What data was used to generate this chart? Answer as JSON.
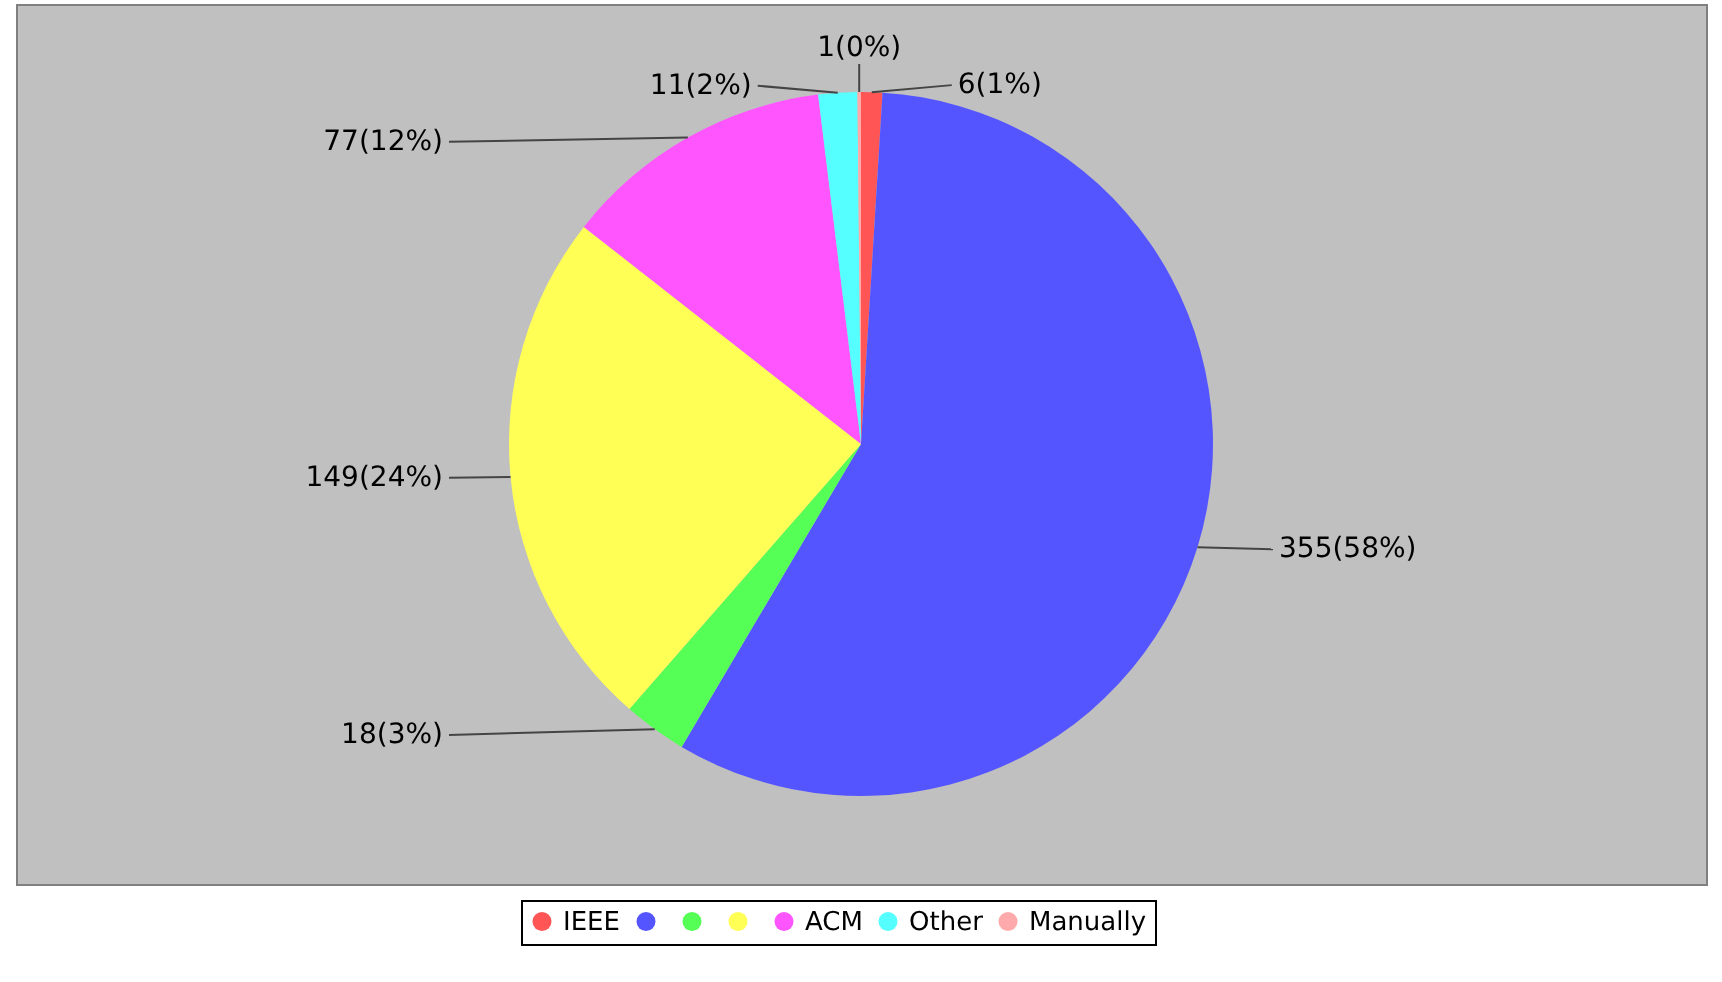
{
  "chart_data": {
    "type": "pie",
    "categories": [
      "IEEE",
      null,
      null,
      null,
      "ACM",
      "Other",
      "Manually"
    ],
    "values": [
      6,
      355,
      18,
      149,
      77,
      11,
      1
    ],
    "colors": [
      "#ff5555",
      "#5555ff",
      "#55ff55",
      "#ffff55",
      "#ff55ff",
      "#55ffff",
      "#ffaaaa"
    ],
    "value_labels": [
      "6(1%)",
      "355(58%)",
      "18(3%)",
      "149(24%)",
      "77(12%)",
      "11(2%)",
      "1(0%)"
    ],
    "legend": "bottom"
  }
}
